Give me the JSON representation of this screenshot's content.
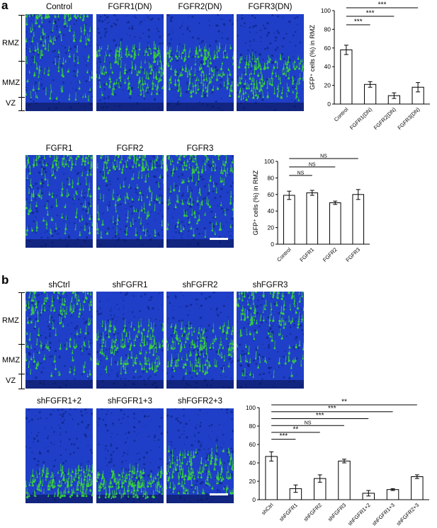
{
  "panel_a": {
    "letter": "a",
    "top_images": [
      "Control",
      "FGFR1(DN)",
      "FGFR2(DN)",
      "FGFR3(DN)"
    ],
    "bottom_images": [
      "FGFR1",
      "FGFR2",
      "FGFR3"
    ],
    "zones": [
      "RMZ",
      "MMZ",
      "VZ"
    ]
  },
  "panel_b": {
    "letter": "b",
    "top_images": [
      "shCtrl",
      "shFGFR1",
      "shFGFR2",
      "shFGFR3"
    ],
    "bottom_images": [
      "shFGFR1+2",
      "shFGFR1+3",
      "shFGFR2+3"
    ],
    "zones": [
      "RMZ",
      "MMZ",
      "VZ"
    ]
  },
  "colors": {
    "nuclei": "#1f3fc8",
    "gfp": "#3ad43a",
    "bar_fill": "#ffffff",
    "axis": "#000000"
  },
  "chart_data": [
    {
      "id": "a-top",
      "type": "bar",
      "ylabel": "GFP⁺ cells (%) in RMZ",
      "ylim": [
        0,
        100
      ],
      "yticks": [
        0,
        20,
        40,
        60,
        80,
        100
      ],
      "categories": [
        "Control",
        "FGFR1(DN)",
        "FGFR2(DN)",
        "FGFR3(DN)"
      ],
      "values": [
        58,
        21,
        9,
        18
      ],
      "errors": [
        5,
        3,
        3,
        5
      ],
      "significance": [
        {
          "from": 0,
          "to": 1,
          "label": "***"
        },
        {
          "from": 0,
          "to": 2,
          "label": "***"
        },
        {
          "from": 0,
          "to": 3,
          "label": "***"
        }
      ]
    },
    {
      "id": "a-bottom",
      "type": "bar",
      "ylabel": "GFP⁺ cells (%) in RMZ",
      "ylim": [
        0,
        100
      ],
      "yticks": [
        0,
        20,
        40,
        60,
        80,
        100
      ],
      "categories": [
        "Control",
        "FGFR1",
        "FGFR2",
        "FGFR3"
      ],
      "values": [
        59,
        62,
        50,
        60
      ],
      "errors": [
        5,
        3,
        2,
        6
      ],
      "significance": [
        {
          "from": 0,
          "to": 1,
          "label": "NS"
        },
        {
          "from": 0,
          "to": 2,
          "label": "NS"
        },
        {
          "from": 0,
          "to": 3,
          "label": "NS"
        }
      ]
    },
    {
      "id": "b",
      "type": "bar",
      "ylabel": "",
      "ylim": [
        0,
        100
      ],
      "yticks": [
        0,
        20,
        40,
        60,
        80,
        100
      ],
      "categories": [
        "shCtrl",
        "shFGFR1",
        "shFGFR2",
        "shFGFR3",
        "shFGFR1+2",
        "shFGFR1+3",
        "shFGFR2+3"
      ],
      "values": [
        47,
        12,
        23,
        42,
        7,
        11,
        25
      ],
      "errors": [
        5,
        4,
        4,
        2,
        3,
        1,
        2
      ],
      "significance": [
        {
          "from": 0,
          "to": 1,
          "label": "***"
        },
        {
          "from": 0,
          "to": 2,
          "label": "**"
        },
        {
          "from": 0,
          "to": 3,
          "label": "NS"
        },
        {
          "from": 0,
          "to": 4,
          "label": "***"
        },
        {
          "from": 0,
          "to": 5,
          "label": "***"
        },
        {
          "from": 0,
          "to": 6,
          "label": "**"
        }
      ]
    }
  ]
}
